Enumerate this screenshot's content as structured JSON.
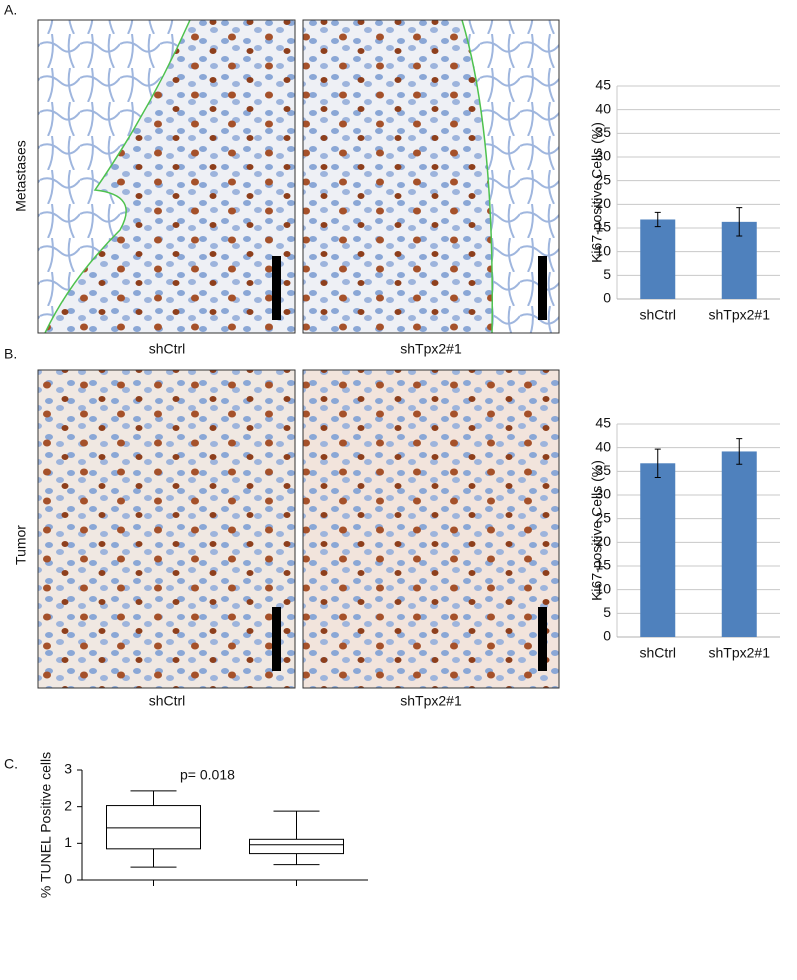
{
  "figure": {
    "panels": [
      "A.",
      "B.",
      "C."
    ],
    "row_labels": [
      "Metastases",
      "Tumor"
    ],
    "captions": [
      [
        "shCtrl",
        "shTpx2#1"
      ],
      [
        "shCtrl",
        "shTpx2#1"
      ]
    ]
  },
  "chart_data": [
    {
      "type": "bar",
      "ylabel": "Ki67-positive Cells (%)",
      "categories": [
        "shCtrl",
        "shTpx2#1"
      ],
      "values": [
        16.8,
        16.3
      ],
      "errors": [
        1.5,
        3.0
      ],
      "color": "#4f81bd",
      "ylim": [
        0,
        45
      ],
      "yticks": [
        0,
        5,
        10,
        15,
        20,
        25,
        30,
        35,
        40,
        45
      ],
      "grid": true
    },
    {
      "type": "bar",
      "ylabel": "Ki67-positive Cells (%)",
      "categories": [
        "shCtrl",
        "shTpx2#1"
      ],
      "values": [
        36.7,
        39.2
      ],
      "errors": [
        3.0,
        2.7
      ],
      "color": "#4f81bd",
      "ylim": [
        0,
        45
      ],
      "yticks": [
        0,
        5,
        10,
        15,
        20,
        25,
        30,
        35,
        40,
        45
      ],
      "grid": true
    },
    {
      "type": "box",
      "ylabel": "% TUNEL Positive cells",
      "annotation": "p= 0.018",
      "categories": [
        null,
        null
      ],
      "whisker_low": [
        0.35,
        0.42
      ],
      "q1": [
        0.85,
        0.72
      ],
      "median": [
        1.42,
        0.96
      ],
      "q3": [
        2.03,
        1.11
      ],
      "whisker_high": [
        2.43,
        1.88
      ],
      "color": "#000000",
      "ylim": [
        0,
        3
      ],
      "yticks": [
        0,
        1,
        2,
        3
      ],
      "grid": false
    }
  ]
}
